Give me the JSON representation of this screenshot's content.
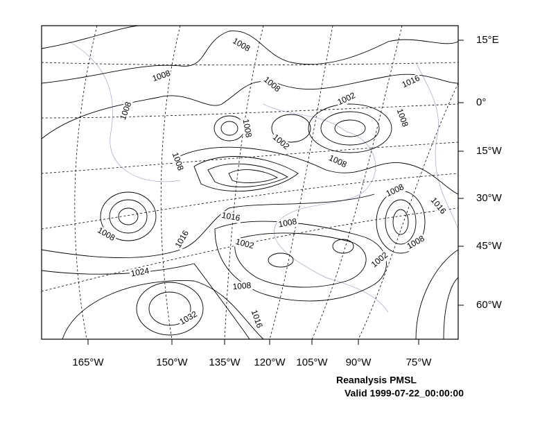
{
  "map": {
    "title": "Reanalysis PMSL",
    "subtitle": "Valid 1999-07-22_00:00:00",
    "longitude_labels": [
      "165°W",
      "150°W",
      "135°W",
      "120°W",
      "105°W",
      "90°W",
      "75°W"
    ],
    "latitude_labels": [
      "15°E",
      "0°",
      "15°W",
      "30°W",
      "45°W",
      "60°W"
    ],
    "contour_labels": [
      "1008",
      "1008",
      "1008",
      "1016",
      "1002",
      "1008",
      "1008",
      "1002",
      "1008",
      "1008",
      "1008",
      "1008",
      "1016",
      "1016",
      "1008",
      "1008",
      "1016",
      "1002",
      "1008",
      "1002",
      "1024",
      "1008",
      "1032",
      "1016"
    ]
  }
}
